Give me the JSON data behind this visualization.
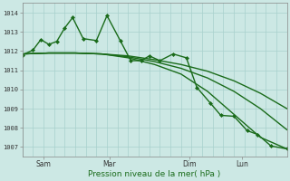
{
  "background_color": "#cce8e4",
  "grid_color": "#a8d0cc",
  "line_color": "#1a6b1a",
  "ylabel_ticks": [
    1007,
    1008,
    1009,
    1010,
    1011,
    1012,
    1013,
    1014
  ],
  "xlabel": "Pression niveau de la mer( hPa )",
  "xtick_labels": [
    "Sam",
    "Mar",
    "Dim",
    "Lun"
  ],
  "ylim": [
    1006.5,
    1014.5
  ],
  "xlim": [
    0,
    100
  ],
  "xtick_positions": [
    8,
    33,
    63,
    83
  ],
  "series": [
    {
      "x": [
        0,
        4,
        7,
        10,
        13,
        16,
        19,
        23,
        28,
        32,
        37,
        41,
        45,
        48,
        52,
        57,
        62,
        66,
        71,
        75,
        80,
        85,
        89,
        94,
        100
      ],
      "y": [
        1011.8,
        1012.05,
        1012.6,
        1012.35,
        1012.5,
        1013.2,
        1013.75,
        1012.65,
        1012.55,
        1013.85,
        1012.55,
        1011.5,
        1011.5,
        1011.75,
        1011.5,
        1011.85,
        1011.65,
        1010.1,
        1009.3,
        1008.65,
        1008.6,
        1007.85,
        1007.65,
        1007.05,
        1006.9
      ],
      "marker": "D",
      "markersize": 2.0,
      "linewidth": 1.0
    },
    {
      "x": [
        0,
        10,
        20,
        30,
        40,
        50,
        60,
        70,
        80,
        90,
        100
      ],
      "y": [
        1011.85,
        1011.9,
        1011.9,
        1011.85,
        1011.75,
        1011.55,
        1011.3,
        1010.95,
        1010.45,
        1009.8,
        1009.0
      ],
      "marker": null,
      "markersize": 0,
      "linewidth": 1.0
    },
    {
      "x": [
        0,
        10,
        20,
        30,
        40,
        50,
        60,
        70,
        80,
        90,
        100
      ],
      "y": [
        1011.85,
        1011.9,
        1011.9,
        1011.85,
        1011.7,
        1011.45,
        1011.1,
        1010.6,
        1009.9,
        1009.0,
        1007.9
      ],
      "marker": null,
      "markersize": 0,
      "linewidth": 1.0
    },
    {
      "x": [
        0,
        10,
        20,
        30,
        40,
        50,
        60,
        70,
        80,
        90,
        100
      ],
      "y": [
        1011.85,
        1011.9,
        1011.9,
        1011.85,
        1011.65,
        1011.3,
        1010.8,
        1009.9,
        1008.7,
        1007.5,
        1006.9
      ],
      "marker": null,
      "markersize": 0,
      "linewidth": 1.0
    }
  ],
  "figsize": [
    3.2,
    2.0
  ],
  "dpi": 100
}
